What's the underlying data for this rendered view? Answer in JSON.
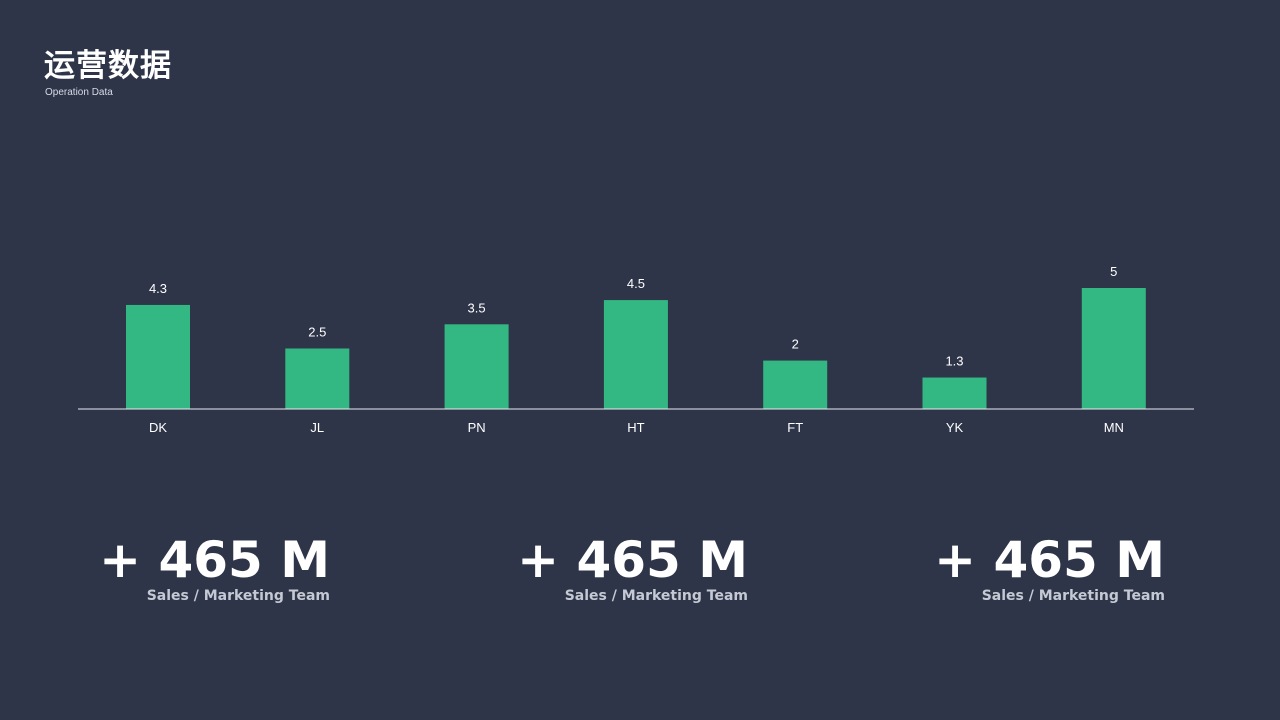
{
  "header": {
    "title": "运营数据",
    "subtitle": "Operation Data"
  },
  "chart_data": {
    "type": "bar",
    "categories": [
      "DK",
      "JL",
      "PN",
      "HT",
      "FT",
      "YK",
      "MN"
    ],
    "values": [
      4.3,
      2.5,
      3.5,
      4.5,
      2,
      1.3,
      5
    ],
    "data_labels": [
      "4.3",
      "2.5",
      "3.5",
      "4.5",
      "2",
      "1.3",
      "5"
    ],
    "title": "",
    "xlabel": "",
    "ylabel": "",
    "ylim": [
      0,
      5
    ],
    "grid": false,
    "legend": "none",
    "bar_color": "#34b883",
    "axis_color": "#e8ebf0"
  },
  "stats": [
    {
      "value": "+ 465 M",
      "label": "Sales / Marketing Team"
    },
    {
      "value": "+ 465 M",
      "label": "Sales / Marketing Team"
    },
    {
      "value": "+ 465 M",
      "label": "Sales / Marketing Team"
    }
  ],
  "colors": {
    "background": "#2e3549",
    "accent": "#34b883"
  }
}
